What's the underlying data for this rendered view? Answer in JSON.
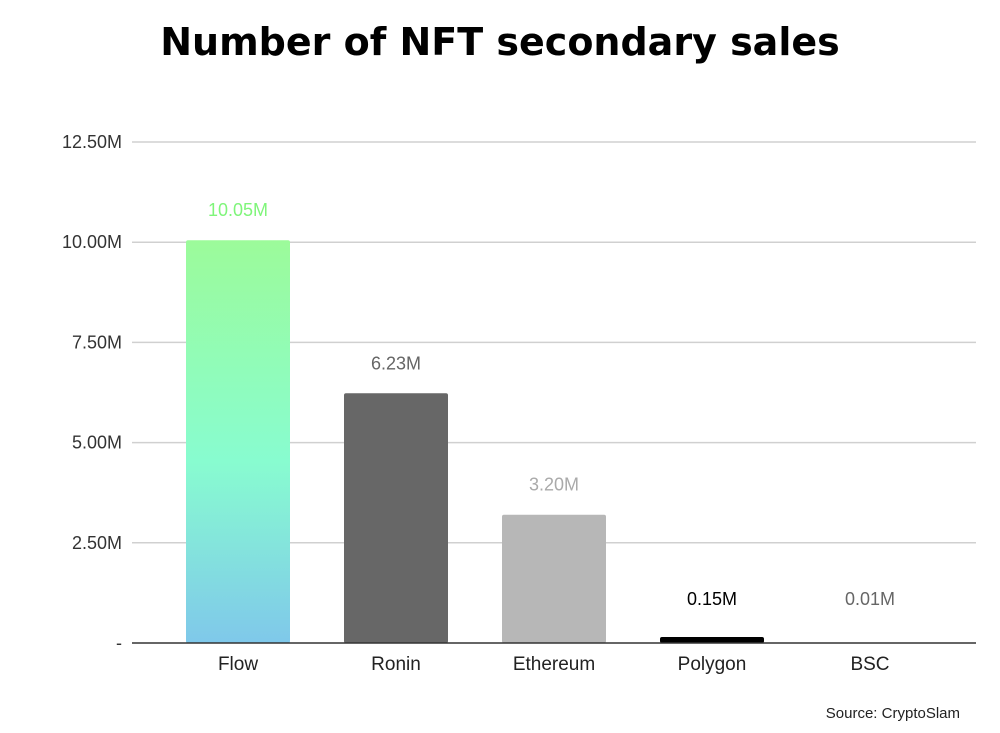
{
  "chart_data": {
    "type": "bar",
    "title": "Number of NFT secondary sales",
    "xlabel": "",
    "ylabel": "",
    "ylim": [
      0,
      12500000
    ],
    "yticks": [
      {
        "value": 0,
        "label": "-"
      },
      {
        "value": 2500000,
        "label": "2.50M"
      },
      {
        "value": 5000000,
        "label": "5.00M"
      },
      {
        "value": 7500000,
        "label": "7.50M"
      },
      {
        "value": 10000000,
        "label": "10.00M"
      },
      {
        "value": 12500000,
        "label": "12.50M"
      }
    ],
    "grid": true,
    "categories": [
      "Flow",
      "Ronin",
      "Ethereum",
      "Polygon",
      "BSC"
    ],
    "values": [
      10050000,
      6230000,
      3200000,
      150000,
      10000
    ],
    "data_labels": [
      "10.05M",
      "6.23M",
      "3.20M",
      "0.15M",
      "0.01M"
    ],
    "bar_colors": [
      "gradient",
      "#676767",
      "#b7b7b7",
      "#000000",
      "#999999"
    ],
    "label_colors": [
      "#7ff57a",
      "#666666",
      "#aaaaaa",
      "#000000",
      "#666666"
    ],
    "flow_gradient": {
      "top": "#9cfb9a",
      "middle": "#88fcd0",
      "bottom": "#7fc8ea"
    },
    "gridline_color": "#d0d0d0",
    "axis_color": "#333333"
  },
  "source": "Source: CryptoSlam"
}
